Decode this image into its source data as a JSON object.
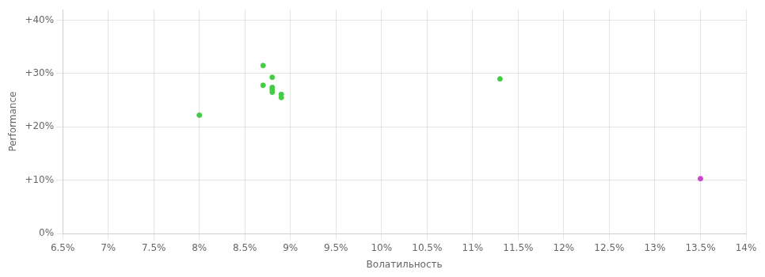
{
  "chart_data": {
    "type": "scatter",
    "xlabel": "Волатильность",
    "ylabel": "Performance",
    "xlim": [
      0.065,
      0.14
    ],
    "ylim": [
      0.0,
      0.42
    ],
    "xticks": [
      {
        "value": 0.065,
        "label": "6.5%"
      },
      {
        "value": 0.07,
        "label": "7%"
      },
      {
        "value": 0.075,
        "label": "7.5%"
      },
      {
        "value": 0.08,
        "label": "8%"
      },
      {
        "value": 0.085,
        "label": "8.5%"
      },
      {
        "value": 0.09,
        "label": "9%"
      },
      {
        "value": 0.095,
        "label": "9.5%"
      },
      {
        "value": 0.1,
        "label": "10%"
      },
      {
        "value": 0.105,
        "label": "10.5%"
      },
      {
        "value": 0.11,
        "label": "11%"
      },
      {
        "value": 0.115,
        "label": "11.5%"
      },
      {
        "value": 0.12,
        "label": "12%"
      },
      {
        "value": 0.125,
        "label": "12.5%"
      },
      {
        "value": 0.13,
        "label": "13%"
      },
      {
        "value": 0.135,
        "label": "13.5%"
      },
      {
        "value": 0.14,
        "label": "14%"
      }
    ],
    "yticks": [
      {
        "value": 0.0,
        "label": "0%"
      },
      {
        "value": 0.1,
        "label": "+10%"
      },
      {
        "value": 0.2,
        "label": "+20%"
      },
      {
        "value": 0.3,
        "label": "+30%"
      },
      {
        "value": 0.4,
        "label": "+40%"
      }
    ],
    "grid": true,
    "series": [
      {
        "color": "#44cc44",
        "x": [
          0.087,
          0.088,
          0.087,
          0.088,
          0.088,
          0.088,
          0.089,
          0.089,
          0.08,
          0.113
        ],
        "values": [
          0.315,
          0.293,
          0.278,
          0.274,
          0.27,
          0.265,
          0.261,
          0.255,
          0.222,
          0.29
        ]
      },
      {
        "color": "#cc44cc",
        "x": [
          0.135
        ],
        "values": [
          0.103
        ]
      }
    ]
  }
}
